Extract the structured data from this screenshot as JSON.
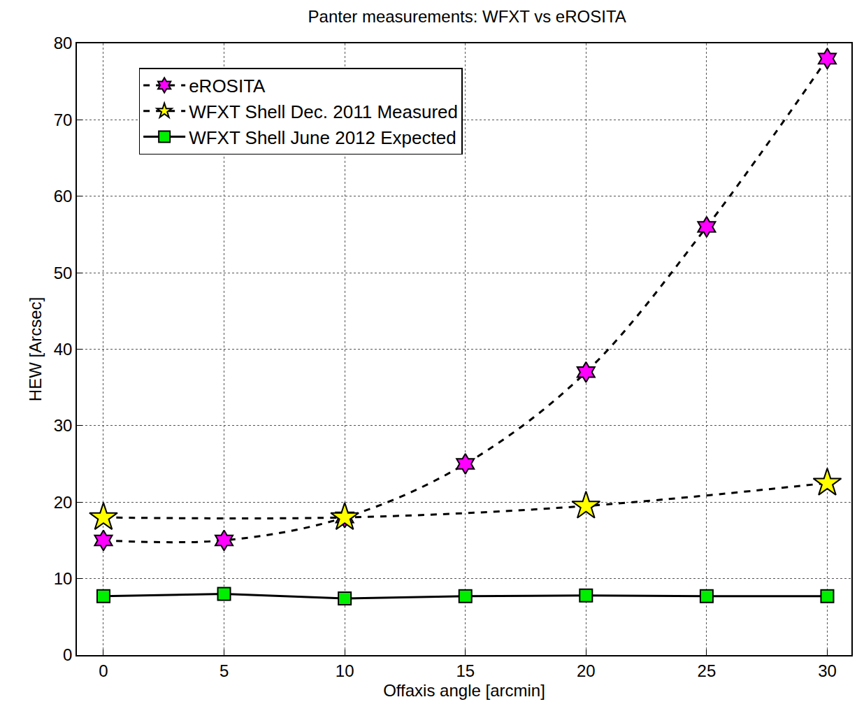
{
  "chart_data": {
    "type": "line",
    "title": "Panter measurements: WFXT vs eROSITA",
    "x_label": "Offaxis angle [arcmin]",
    "y_label": "HEW [Arcsec]",
    "xlim": [
      -1.1,
      31
    ],
    "xticks": [
      0,
      5,
      10,
      15,
      20,
      25,
      30
    ],
    "ylim": [
      0,
      80
    ],
    "yticks": [
      0,
      10,
      20,
      30,
      40,
      50,
      60,
      70,
      80
    ],
    "grid": true,
    "legend": "upper left",
    "series": [
      {
        "name": "eROSITA",
        "color": "#ff00ff",
        "marker": "hexagram",
        "line_style": "dashed",
        "x": [
          0,
          5,
          10,
          15,
          20,
          25,
          30
        ],
        "values": [
          15,
          15,
          18,
          25,
          37,
          56,
          78
        ]
      },
      {
        "name": "WFXT Shell Dec. 2011 Measured",
        "color": "#ffff00",
        "marker": "star",
        "line_style": "dashed",
        "x": [
          0,
          10,
          20,
          30
        ],
        "values": [
          18,
          18,
          19.5,
          22.5
        ]
      },
      {
        "name": "WFXT Shell June 2012 Expected",
        "color": "#00ee00",
        "marker": "square",
        "line_style": "solid",
        "x": [
          0,
          5,
          10,
          15,
          20,
          25,
          30
        ],
        "values": [
          7.7,
          8,
          7.4,
          7.7,
          7.8,
          7.7,
          7.7
        ]
      }
    ]
  }
}
